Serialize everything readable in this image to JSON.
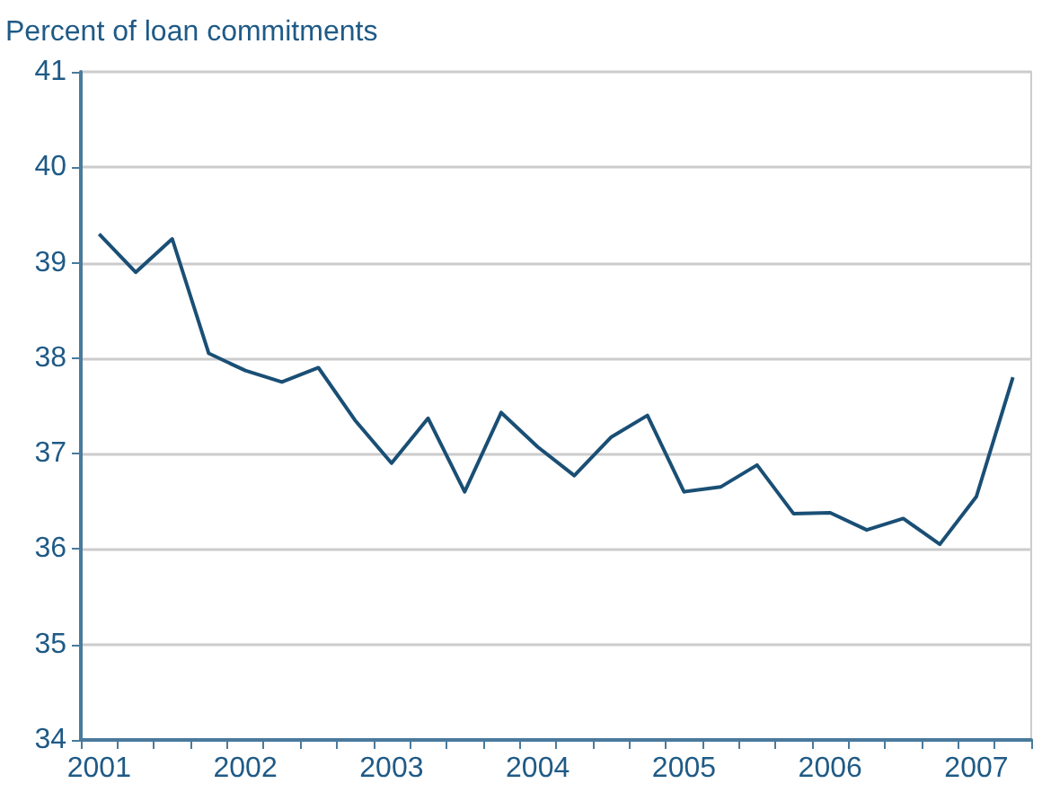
{
  "chart_data": {
    "type": "line",
    "ylabel": "Percent of loan commitments",
    "categories": [
      "2001",
      null,
      null,
      null,
      "2002",
      null,
      null,
      null,
      "2003",
      null,
      null,
      null,
      "2004",
      null,
      null,
      null,
      "2005",
      null,
      null,
      null,
      "2006",
      null,
      null,
      null,
      "2007",
      null
    ],
    "series": [
      {
        "color": "#1a4f75",
        "values": [
          39.3,
          38.9,
          39.25,
          38.05,
          37.87,
          37.75,
          37.9,
          37.35,
          36.9,
          37.37,
          36.6,
          37.43,
          37.07,
          36.77,
          37.17,
          37.4,
          36.6,
          36.65,
          36.88,
          36.37,
          36.38,
          36.2,
          36.32,
          36.05,
          36.55,
          37.8
        ]
      }
    ],
    "ylim": [
      34,
      41
    ],
    "yticks": [
      34,
      35,
      36,
      37,
      38,
      39,
      40,
      41
    ],
    "grid": "y",
    "marker": "none",
    "line_style": "solid"
  }
}
